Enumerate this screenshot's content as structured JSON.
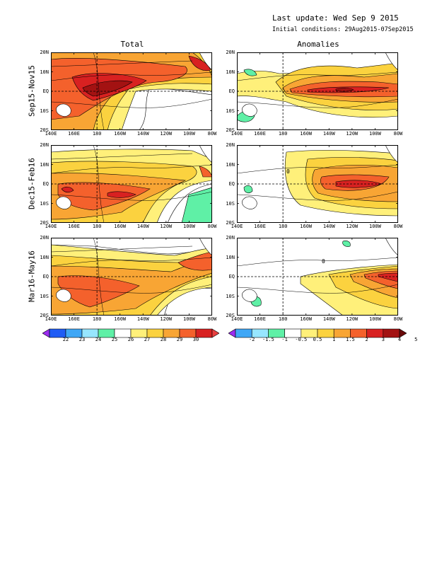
{
  "header": {
    "last_update": "Last update: Wed Sep 9 2015",
    "initial_conditions": "Initial conditions: 29Aug2015-07Sep2015"
  },
  "columns": [
    {
      "title": "Total"
    },
    {
      "title": "Anomalies"
    }
  ],
  "rows": [
    {
      "label": "Sep15-Nov15"
    },
    {
      "label": "Dec15-Feb16"
    },
    {
      "label": "Mar16-May16"
    }
  ],
  "axes": {
    "lat_ticks": [
      "20N",
      "10N",
      "EQ",
      "10S",
      "20S"
    ],
    "lon_ticks": [
      "140E",
      "160E",
      "180",
      "160W",
      "140W",
      "120W",
      "100W",
      "80W"
    ]
  },
  "colorbars": {
    "total": {
      "labels": [
        "22",
        "23",
        "24",
        "25",
        "26",
        "27",
        "28",
        "29",
        "30"
      ],
      "colors": [
        "#9b2cf0",
        "#1f5cf5",
        "#3fa7f6",
        "#97e6ff",
        "#5ff0a6",
        "#ffffff",
        "#fff07a",
        "#fbd23f",
        "#f8a534",
        "#f4612c",
        "#d82121",
        "#e84040"
      ]
    },
    "anomaly": {
      "labels": [
        "-2",
        "-1.5",
        "-1",
        "-0.5",
        "0.5",
        "1",
        "1.5",
        "2",
        "3",
        "4",
        "5"
      ],
      "colors": [
        "#9b2cf0",
        "#3fa7f6",
        "#97e6ff",
        "#5ff0a6",
        "#ffffff",
        "#fff07a",
        "#fbd23f",
        "#f8a534",
        "#f4612c",
        "#d82121",
        "#a31212",
        "#6a0a0a"
      ]
    }
  },
  "contour_label": "0"
}
